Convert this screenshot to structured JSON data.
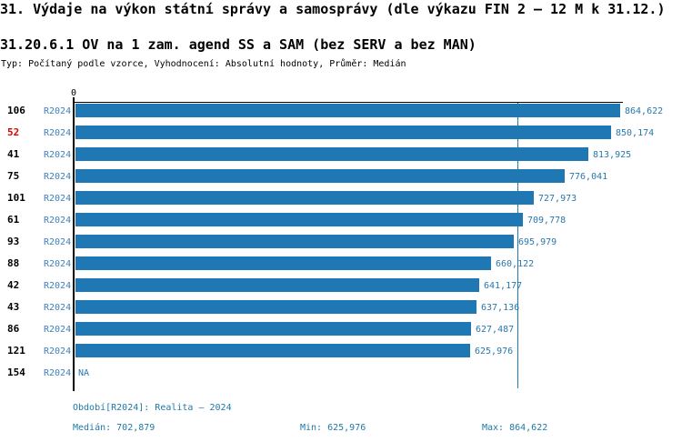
{
  "header": {
    "title": "31. Výdaje na výkon státní správy a samosprávy (dle výkazu FIN 2 – 12 M k 31.12.)",
    "subtitle": "31.20.6.1 OV na 1 zam. agend SS a SAM (bez SERV a bez MAN)",
    "meta": "Typ: Počítaný podle vzorce, Vyhodnocení: Absolutní hodnoty, Průměr: Medián"
  },
  "chart_data": {
    "type": "bar",
    "orientation": "horizontal",
    "title": "31.20.6.1 OV na 1 zam. agend SS a SAM (bez SERV a bez MAN)",
    "x_axis": {
      "zero_tick": "0",
      "max": 864622,
      "grid": false
    },
    "median": {
      "value": 702879,
      "label": "702,879"
    },
    "legend_position": "none",
    "categories": [
      "106",
      "52",
      "41",
      "75",
      "101",
      "61",
      "93",
      "88",
      "42",
      "43",
      "86",
      "121",
      "154"
    ],
    "rows": [
      {
        "id": "106",
        "period": "R2024",
        "value": 864622,
        "value_label": "864,622",
        "highlight": false
      },
      {
        "id": "52",
        "period": "R2024",
        "value": 850174,
        "value_label": "850,174",
        "highlight": true
      },
      {
        "id": "41",
        "period": "R2024",
        "value": 813925,
        "value_label": "813,925",
        "highlight": false
      },
      {
        "id": "75",
        "period": "R2024",
        "value": 776041,
        "value_label": "776,041",
        "highlight": false
      },
      {
        "id": "101",
        "period": "R2024",
        "value": 727973,
        "value_label": "727,973",
        "highlight": false
      },
      {
        "id": "61",
        "period": "R2024",
        "value": 709778,
        "value_label": "709,778",
        "highlight": false
      },
      {
        "id": "93",
        "period": "R2024",
        "value": 695979,
        "value_label": "695,979",
        "highlight": false
      },
      {
        "id": "88",
        "period": "R2024",
        "value": 660122,
        "value_label": "660,122",
        "highlight": false
      },
      {
        "id": "42",
        "period": "R2024",
        "value": 641177,
        "value_label": "641,177",
        "highlight": false
      },
      {
        "id": "43",
        "period": "R2024",
        "value": 637136,
        "value_label": "637,136",
        "highlight": false
      },
      {
        "id": "86",
        "period": "R2024",
        "value": 627487,
        "value_label": "627,487",
        "highlight": false
      },
      {
        "id": "121",
        "period": "R2024",
        "value": 625976,
        "value_label": "625,976",
        "highlight": false
      },
      {
        "id": "154",
        "period": "R2024",
        "value": null,
        "value_label": "NA",
        "highlight": false
      }
    ]
  },
  "footer": {
    "period_line": "Období[R2024]: Realita – 2024",
    "median_label": "Medián: 702,879",
    "min_label": "Min: 625,976",
    "max_label": "Max: 864,622"
  },
  "colors": {
    "bar": "#1f77b4",
    "median_line": "#1f77b4",
    "period_text": "#4080ba",
    "value_text": "#2878ae",
    "footer_text": "#1f7aa6",
    "highlight_row": "#dd0000",
    "axis": "#000000"
  }
}
